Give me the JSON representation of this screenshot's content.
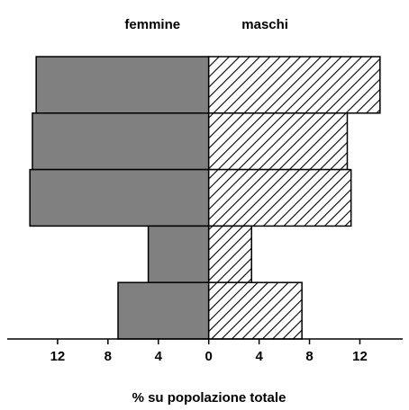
{
  "chart_data": {
    "type": "bar",
    "orientation": "pyramid",
    "xlabel": "% su popolazione totale",
    "categories": [
      null,
      null,
      null,
      null,
      null
    ],
    "series": [
      {
        "name": "femmine",
        "color": "#808080",
        "side": "left",
        "values": [
          13.7,
          14.0,
          14.2,
          4.8,
          7.2
        ]
      },
      {
        "name": "maschi",
        "color": "#000000",
        "pattern": "hatch",
        "side": "right",
        "values": [
          13.6,
          11.0,
          11.3,
          3.4,
          7.4
        ]
      }
    ],
    "xlim": [
      -16,
      15.4
    ],
    "xticks": [
      {
        "value": -12,
        "label": "12"
      },
      {
        "value": -8,
        "label": "8"
      },
      {
        "value": -4,
        "label": "4"
      },
      0,
      4,
      8,
      12
    ]
  }
}
